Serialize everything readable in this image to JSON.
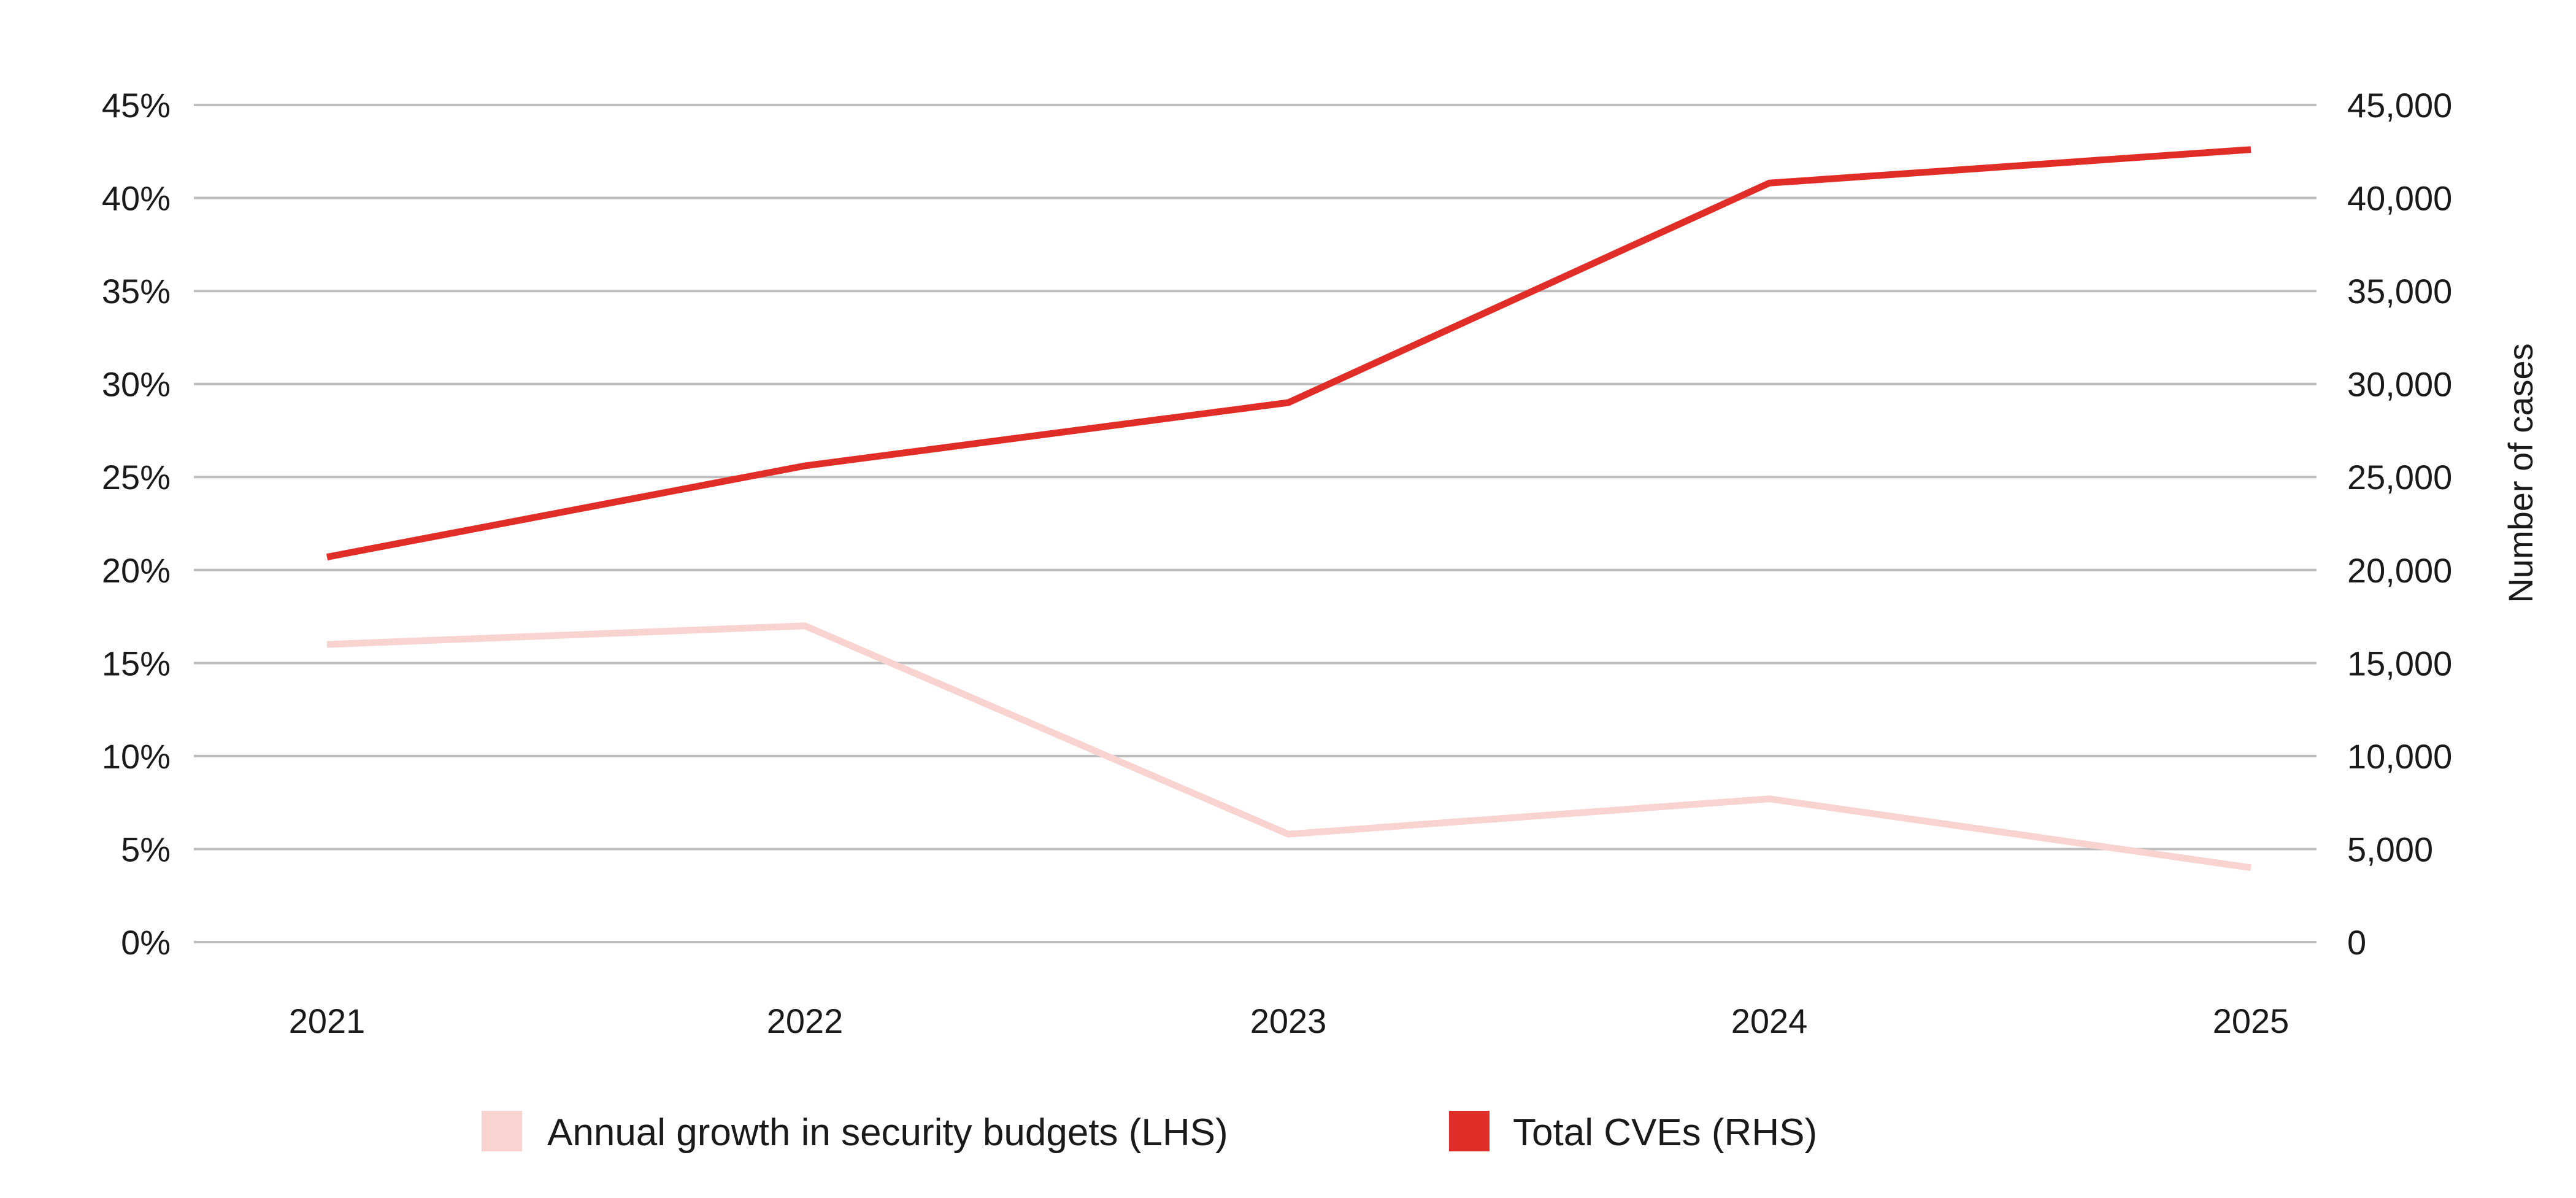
{
  "chart_data": {
    "type": "line",
    "title": "",
    "categories": [
      "2021",
      "2022",
      "2023",
      "2024",
      "2025"
    ],
    "y_left": {
      "label": "",
      "range": [
        0,
        45
      ],
      "ticks": [
        0,
        5,
        10,
        15,
        20,
        25,
        30,
        35,
        40,
        45
      ],
      "tick_labels": [
        "0%",
        "5%",
        "10%",
        "15%",
        "20%",
        "25%",
        "30%",
        "35%",
        "40%",
        "45%"
      ]
    },
    "y_right": {
      "label": "Number of cases",
      "range": [
        0,
        45000
      ],
      "ticks": [
        0,
        5000,
        10000,
        15000,
        20000,
        25000,
        30000,
        35000,
        40000,
        45000
      ],
      "tick_labels": [
        "0",
        "5,000",
        "10,000",
        "15,000",
        "20,000",
        "25,000",
        "30,000",
        "35,000",
        "40,000",
        "45,000"
      ]
    },
    "grid": true,
    "legend_position": "bottom",
    "series": [
      {
        "name": "Annual growth in security budgets (LHS)",
        "axis": "left",
        "color": "#f9d3d0",
        "values": [
          16.0,
          17.0,
          5.8,
          7.7,
          4.0
        ]
      },
      {
        "name": "Total CVEs (RHS)",
        "axis": "right",
        "color": "#e02d27",
        "values": [
          20700,
          25600,
          29000,
          40800,
          42600
        ]
      }
    ]
  }
}
